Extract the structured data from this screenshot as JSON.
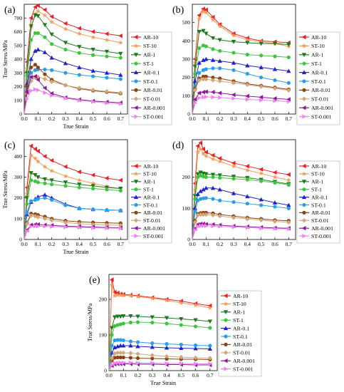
{
  "series_styles": [
    {
      "name": "AR-10",
      "color": "#e8202a",
      "marker": "triangle-left"
    },
    {
      "name": "ST-10",
      "color": "#f59a55",
      "marker": "star"
    },
    {
      "name": "AR-1",
      "color": "#1e7a1e",
      "marker": "triangle-down"
    },
    {
      "name": "ST-1",
      "color": "#3fc43f",
      "marker": "circle"
    },
    {
      "name": "AR-0.1",
      "color": "#2222c8",
      "marker": "triangle-up"
    },
    {
      "name": "ST-0.1",
      "color": "#2a9ee8",
      "marker": "circle"
    },
    {
      "name": "AR-0.01",
      "color": "#8b4513",
      "marker": "circle"
    },
    {
      "name": "ST-0.01",
      "color": "#d2a679",
      "marker": "diamond"
    },
    {
      "name": "AR-0.001",
      "color": "#8a1a9a",
      "marker": "triangle-left"
    },
    {
      "name": "ST-0.001",
      "color": "#ee82ee",
      "marker": "triangle-right"
    }
  ],
  "chart_data": [
    {
      "type": "line",
      "panel_label": "(a)",
      "xlabel": "True Strain",
      "ylabel": "True Stress/MPa",
      "xlim": [
        0,
        0.75
      ],
      "ylim": [
        0,
        800
      ],
      "xticks": [
        "0.0",
        "0.1",
        "0.2",
        "0.3",
        "0.4",
        "0.5",
        "0.6",
        "0.7"
      ],
      "yticks": [
        "0",
        "100",
        "200",
        "300",
        "400",
        "500",
        "600",
        "700"
      ],
      "xtick_values": [
        0,
        0.1,
        0.2,
        0.3,
        0.4,
        0.5,
        0.6,
        0.7
      ],
      "ytick_values": [
        0,
        100,
        200,
        300,
        400,
        500,
        600,
        700
      ],
      "legend": "right",
      "x": [
        0,
        0.02,
        0.05,
        0.08,
        0.1,
        0.15,
        0.2,
        0.3,
        0.4,
        0.5,
        0.6,
        0.7
      ],
      "series": [
        {
          "name": "AR-10",
          "values": [
            0,
            380,
            700,
            780,
            790,
            760,
            710,
            660,
            625,
            600,
            585,
            570
          ]
        },
        {
          "name": "ST-10",
          "values": [
            0,
            330,
            630,
            730,
            750,
            720,
            670,
            620,
            585,
            560,
            540,
            520
          ]
        },
        {
          "name": "AR-1",
          "values": [
            0,
            300,
            640,
            720,
            715,
            650,
            580,
            520,
            490,
            470,
            455,
            440
          ]
        },
        {
          "name": "ST-1",
          "values": [
            0,
            280,
            540,
            590,
            590,
            560,
            510,
            470,
            445,
            430,
            420,
            410
          ]
        },
        {
          "name": "AR-0.1",
          "values": [
            0,
            220,
            400,
            460,
            470,
            450,
            410,
            370,
            340,
            315,
            300,
            285
          ]
        },
        {
          "name": "ST-0.1",
          "values": [
            0,
            180,
            300,
            320,
            325,
            325,
            320,
            300,
            285,
            275,
            265,
            255
          ]
        },
        {
          "name": "AR-0.01",
          "values": [
            0,
            200,
            340,
            360,
            340,
            290,
            250,
            210,
            185,
            170,
            160,
            150
          ]
        },
        {
          "name": "ST-0.01",
          "values": [
            0,
            150,
            240,
            265,
            270,
            255,
            235,
            210,
            190,
            175,
            165,
            155
          ]
        },
        {
          "name": "AR-0.001",
          "values": [
            0,
            160,
            270,
            275,
            250,
            190,
            150,
            120,
            105,
            95,
            88,
            82
          ]
        },
        {
          "name": "ST-0.001",
          "values": [
            0,
            110,
            170,
            180,
            175,
            155,
            135,
            115,
            100,
            90,
            80,
            75
          ]
        }
      ]
    },
    {
      "type": "line",
      "panel_label": "(b)",
      "xlabel": "",
      "ylabel": "",
      "xlim": [
        0,
        0.75
      ],
      "ylim": [
        0,
        600
      ],
      "xticks": [
        "0.0",
        "0.1",
        "0.2",
        "0.3",
        "0.4",
        "0.5",
        "0.6",
        "0.7"
      ],
      "yticks": [
        "0",
        "100",
        "200",
        "300",
        "400",
        "500"
      ],
      "xtick_values": [
        0,
        0.1,
        0.2,
        0.3,
        0.4,
        0.5,
        0.6,
        0.7
      ],
      "ytick_values": [
        0,
        100,
        200,
        300,
        400,
        500
      ],
      "legend": "right",
      "x": [
        0,
        0.02,
        0.05,
        0.08,
        0.1,
        0.15,
        0.2,
        0.3,
        0.4,
        0.5,
        0.6,
        0.7
      ],
      "series": [
        {
          "name": "AR-10",
          "values": [
            0,
            300,
            540,
            575,
            570,
            530,
            490,
            440,
            415,
            400,
            395,
            390
          ]
        },
        {
          "name": "ST-10",
          "values": [
            0,
            280,
            520,
            560,
            555,
            515,
            480,
            430,
            405,
            395,
            385,
            370
          ]
        },
        {
          "name": "AR-1",
          "values": [
            0,
            260,
            450,
            455,
            440,
            415,
            405,
            395,
            390,
            385,
            385,
            380
          ]
        },
        {
          "name": "ST-1",
          "values": [
            0,
            220,
            360,
            375,
            370,
            355,
            345,
            335,
            325,
            320,
            315,
            310
          ]
        },
        {
          "name": "AR-0.1",
          "values": [
            0,
            180,
            280,
            295,
            300,
            295,
            290,
            280,
            265,
            255,
            245,
            235
          ]
        },
        {
          "name": "ST-0.1",
          "values": [
            0,
            150,
            225,
            240,
            245,
            250,
            250,
            240,
            220,
            200,
            185,
            170
          ]
        },
        {
          "name": "AR-0.01",
          "values": [
            0,
            140,
            195,
            205,
            205,
            200,
            195,
            180,
            165,
            155,
            145,
            135
          ]
        },
        {
          "name": "ST-0.01",
          "values": [
            0,
            130,
            185,
            190,
            190,
            185,
            180,
            170,
            160,
            150,
            140,
            130
          ]
        },
        {
          "name": "AR-0.001",
          "values": [
            0,
            80,
            115,
            120,
            122,
            120,
            115,
            105,
            98,
            92,
            85,
            80
          ]
        },
        {
          "name": "ST-0.001",
          "values": [
            0,
            60,
            88,
            92,
            94,
            92,
            90,
            85,
            80,
            76,
            72,
            68
          ]
        }
      ]
    },
    {
      "type": "line",
      "panel_label": "(c)",
      "xlabel": "True Strain",
      "ylabel": "True Stress/MPa",
      "xlim": [
        0,
        0.75
      ],
      "ylim": [
        0,
        480
      ],
      "xticks": [
        "0.0",
        "0.1",
        "0.2",
        "0.3",
        "0.4",
        "0.5",
        "0.6",
        "0.7"
      ],
      "yticks": [
        "0",
        "100",
        "200",
        "300",
        "400"
      ],
      "xtick_values": [
        0,
        0.1,
        0.2,
        0.3,
        0.4,
        0.5,
        0.6,
        0.7
      ],
      "ytick_values": [
        0,
        100,
        200,
        300,
        400
      ],
      "legend": "right",
      "x": [
        0,
        0.02,
        0.05,
        0.08,
        0.1,
        0.15,
        0.2,
        0.3,
        0.4,
        0.5,
        0.6,
        0.7
      ],
      "series": [
        {
          "name": "AR-10",
          "values": [
            0,
            250,
            450,
            435,
            425,
            400,
            380,
            350,
            325,
            310,
            295,
            285
          ]
        },
        {
          "name": "ST-10",
          "values": [
            0,
            220,
            405,
            390,
            375,
            350,
            330,
            305,
            285,
            270,
            255,
            245
          ]
        },
        {
          "name": "AR-1",
          "values": [
            0,
            200,
            320,
            310,
            300,
            290,
            285,
            275,
            265,
            258,
            250,
            245
          ]
        },
        {
          "name": "ST-1",
          "values": [
            0,
            170,
            285,
            280,
            275,
            270,
            265,
            258,
            250,
            245,
            240,
            235
          ]
        },
        {
          "name": "AR-0.1",
          "values": [
            0,
            120,
            180,
            195,
            205,
            215,
            200,
            170,
            150,
            145,
            142,
            140
          ]
        },
        {
          "name": "ST-0.1",
          "values": [
            0,
            130,
            185,
            190,
            195,
            200,
            190,
            165,
            150,
            145,
            142,
            140
          ]
        },
        {
          "name": "AR-0.01",
          "values": [
            0,
            80,
            125,
            122,
            118,
            110,
            100,
            90,
            85,
            82,
            80,
            78
          ]
        },
        {
          "name": "ST-0.01",
          "values": [
            0,
            75,
            115,
            112,
            108,
            100,
            92,
            82,
            76,
            72,
            70,
            68
          ]
        },
        {
          "name": "AR-0.001",
          "values": [
            0,
            45,
            70,
            72,
            72,
            70,
            68,
            64,
            62,
            60,
            58,
            56
          ]
        },
        {
          "name": "ST-0.001",
          "values": [
            0,
            40,
            62,
            64,
            64,
            63,
            62,
            60,
            58,
            56,
            55,
            54
          ]
        }
      ]
    },
    {
      "type": "line",
      "panel_label": "(d)",
      "xlabel": "",
      "ylabel": "",
      "xlim": [
        0,
        0.75
      ],
      "ylim": [
        0,
        320
      ],
      "xticks": [
        "0.0",
        "0.1",
        "0.2",
        "0.3",
        "0.4",
        "0.5",
        "0.6",
        "0.7"
      ],
      "yticks": [
        "0",
        "100",
        "200"
      ],
      "xtick_values": [
        0,
        0.1,
        0.2,
        0.3,
        0.4,
        0.5,
        0.6,
        0.7
      ],
      "ytick_values": [
        0,
        100,
        200
      ],
      "legend": "right",
      "x": [
        0,
        0.02,
        0.04,
        0.06,
        0.08,
        0.1,
        0.15,
        0.2,
        0.3,
        0.4,
        0.5,
        0.6,
        0.7
      ],
      "series": [
        {
          "name": "AR-10",
          "values": [
            0,
            180,
            300,
            310,
            290,
            280,
            270,
            260,
            245,
            235,
            225,
            215,
            208
          ]
        },
        {
          "name": "ST-10",
          "values": [
            0,
            160,
            280,
            290,
            275,
            268,
            258,
            250,
            235,
            222,
            212,
            200,
            190
          ]
        },
        {
          "name": "AR-1",
          "values": [
            0,
            140,
            210,
            215,
            212,
            210,
            208,
            206,
            202,
            198,
            192,
            185,
            178
          ]
        },
        {
          "name": "ST-1",
          "values": [
            0,
            130,
            200,
            205,
            202,
            200,
            200,
            198,
            195,
            192,
            187,
            182,
            175
          ]
        },
        {
          "name": "AR-0.1",
          "values": [
            0,
            100,
            145,
            155,
            160,
            165,
            165,
            160,
            148,
            138,
            128,
            118,
            110
          ]
        },
        {
          "name": "ST-0.1",
          "values": [
            0,
            90,
            125,
            130,
            132,
            133,
            130,
            125,
            120,
            115,
            110,
            105,
            100
          ]
        },
        {
          "name": "AR-0.01",
          "values": [
            0,
            60,
            82,
            85,
            86,
            86,
            84,
            80,
            75,
            70,
            66,
            62,
            60
          ]
        },
        {
          "name": "ST-0.01",
          "values": [
            0,
            55,
            78,
            80,
            80,
            80,
            78,
            75,
            70,
            66,
            62,
            58,
            55
          ]
        },
        {
          "name": "AR-0.001",
          "values": [
            0,
            35,
            48,
            50,
            50,
            49,
            48,
            46,
            43,
            41,
            39,
            37,
            36
          ]
        },
        {
          "name": "ST-0.001",
          "values": [
            0,
            30,
            42,
            44,
            44,
            44,
            43,
            42,
            40,
            38,
            36,
            35,
            34
          ]
        }
      ]
    },
    {
      "type": "line",
      "panel_label": "(e)",
      "xlabel": "True Strain",
      "ylabel": "True Stress/MPa",
      "xlim": [
        0,
        0.75
      ],
      "ylim": [
        0,
        270
      ],
      "xticks": [
        "0.0",
        "0.1",
        "0.2",
        "0.3",
        "0.4",
        "0.5",
        "0.6",
        "0.7"
      ],
      "yticks": [
        "0",
        "100",
        "200"
      ],
      "xtick_values": [
        0,
        0.1,
        0.2,
        0.3,
        0.4,
        0.5,
        0.6,
        0.7
      ],
      "ytick_values": [
        0,
        100,
        200
      ],
      "legend": "right",
      "x": [
        0,
        0.02,
        0.04,
        0.06,
        0.08,
        0.1,
        0.15,
        0.2,
        0.3,
        0.4,
        0.5,
        0.6,
        0.7
      ],
      "series": [
        {
          "name": "AR-10",
          "values": [
            0,
            255,
            220,
            218,
            215,
            214,
            212,
            210,
            205,
            200,
            195,
            188,
            182
          ]
        },
        {
          "name": "ST-10",
          "values": [
            0,
            240,
            210,
            212,
            212,
            211,
            210,
            208,
            203,
            197,
            190,
            184,
            176
          ]
        },
        {
          "name": "AR-1",
          "values": [
            0,
            120,
            150,
            152,
            152,
            153,
            153,
            152,
            150,
            148,
            145,
            142,
            138
          ]
        },
        {
          "name": "ST-1",
          "values": [
            0,
            100,
            125,
            128,
            130,
            132,
            135,
            136,
            135,
            132,
            128,
            124,
            120
          ]
        },
        {
          "name": "AR-0.1",
          "values": [
            0,
            50,
            65,
            68,
            70,
            70,
            70,
            68,
            66,
            64,
            63,
            62,
            61
          ]
        },
        {
          "name": "ST-0.1",
          "values": [
            0,
            70,
            85,
            86,
            86,
            85,
            82,
            80,
            77,
            75,
            73,
            71,
            70
          ]
        },
        {
          "name": "AR-0.01",
          "values": [
            0,
            28,
            36,
            37,
            37,
            37,
            36,
            35,
            34,
            33,
            32,
            32,
            31
          ]
        },
        {
          "name": "ST-0.01",
          "values": [
            0,
            35,
            48,
            50,
            50,
            50,
            49,
            47,
            43,
            40,
            38,
            36,
            35
          ]
        },
        {
          "name": "AR-0.001",
          "values": [
            0,
            14,
            18,
            19,
            19,
            19,
            19,
            18,
            18,
            17,
            17,
            16,
            16
          ]
        },
        {
          "name": "ST-0.001",
          "values": [
            0,
            16,
            21,
            22,
            22,
            22,
            22,
            21,
            21,
            20,
            20,
            19,
            19
          ]
        }
      ]
    }
  ]
}
